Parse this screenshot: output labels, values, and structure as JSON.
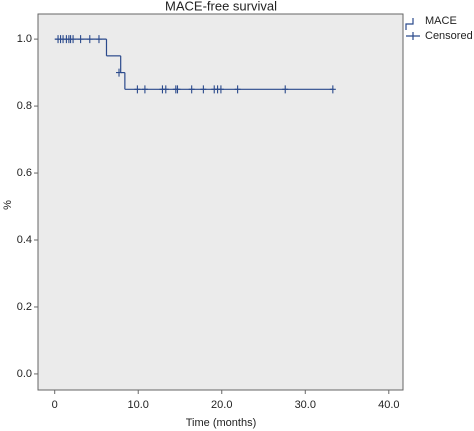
{
  "chart_data": {
    "type": "km-step",
    "title": "MACE-free survival",
    "xlabel": "Time (months)",
    "ylabel": "%",
    "xlim": [
      -2,
      41.7
    ],
    "ylim": [
      -0.048,
      1.075
    ],
    "xticks": [
      0,
      {
        "value": 10,
        "label": "10.0"
      },
      {
        "value": 20,
        "label": "20.0"
      },
      {
        "value": 30,
        "label": "30.0"
      },
      {
        "value": 40,
        "label": "40.0"
      }
    ],
    "yticks": [
      {
        "value": 0,
        "label": "0.0"
      },
      {
        "value": 0.2,
        "label": "0.2"
      },
      {
        "value": 0.4,
        "label": "0.4"
      },
      {
        "value": 0.6,
        "label": "0.6"
      },
      {
        "value": 0.8,
        "label": "0.8"
      },
      {
        "value": 1,
        "label": "1.0"
      }
    ],
    "series": [
      {
        "name": "MACE",
        "color": "#2b4a8c",
        "x": [
          0,
          6.2,
          7.9,
          8.4,
          33.4
        ],
        "values": [
          1,
          0.95,
          0.9,
          0.85,
          0.85
        ]
      },
      {
        "name": "Censored",
        "color": "#2b4a8c",
        "x": [
          0.4,
          0.7,
          1.0,
          1.4,
          1.7,
          1.9,
          2.2,
          3.1,
          4.2,
          5.3,
          7.7,
          9.9,
          10.8,
          12.9,
          13.3,
          14.5,
          14.7,
          16.4,
          17.8,
          19.1,
          19.5,
          19.9,
          21.9,
          27.6,
          33.3
        ],
        "values": [
          1,
          1,
          1,
          1,
          1,
          1,
          1,
          1,
          1,
          1,
          0.9,
          0.85,
          0.85,
          0.85,
          0.85,
          0.85,
          0.85,
          0.85,
          0.85,
          0.85,
          0.85,
          0.85,
          0.85,
          0.85,
          0.85
        ]
      }
    ]
  }
}
